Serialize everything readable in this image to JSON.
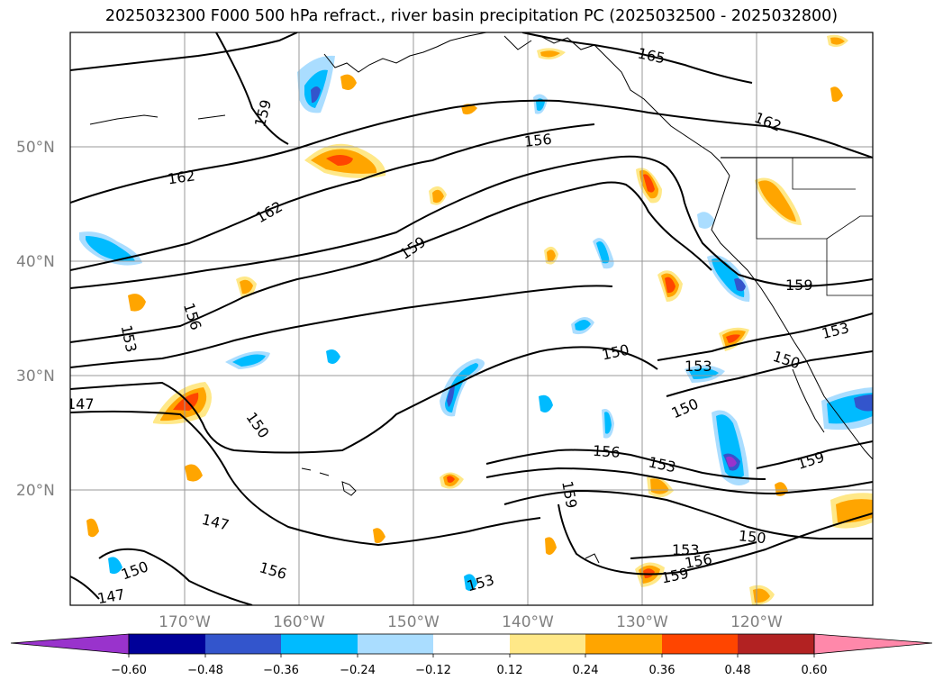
{
  "title": "2025032300 F000 500 hPa refract., river basin precipitation PC (2025032500 - 2025032800)",
  "lat_labels": [
    "50°N",
    "40°N",
    "30°N",
    "20°N"
  ],
  "lon_labels": [
    "170°W",
    "160°W",
    "150°W",
    "140°W",
    "130°W",
    "120°W"
  ],
  "contour_labels": [
    "165",
    "162",
    "162",
    "162",
    "159",
    "159",
    "159",
    "159",
    "159",
    "156",
    "156",
    "156",
    "156",
    "153",
    "153",
    "153",
    "153",
    "153",
    "150",
    "150",
    "150",
    "150",
    "150",
    "150",
    "147",
    "147",
    "156",
    "159"
  ],
  "colorbar": {
    "tick_labels": [
      "−0.60",
      "−0.48",
      "−0.36",
      "−0.24",
      "−0.12",
      "0.12",
      "0.24",
      "0.36",
      "0.48",
      "0.60"
    ],
    "colors": [
      "#9933cc",
      "#000099",
      "#3355cc",
      "#00bbff",
      "#aaddff",
      "#ffffff",
      "#ffe888",
      "#ffa500",
      "#ff4500",
      "#b22222",
      "#ff88aa"
    ]
  },
  "map_data": {
    "region": "North-East Pacific",
    "lat_range": [
      10,
      60
    ],
    "lon_range": [
      -180,
      -110
    ],
    "contour_interval": 3,
    "contour_values": [
      147,
      150,
      153,
      156,
      159,
      162,
      165
    ]
  }
}
